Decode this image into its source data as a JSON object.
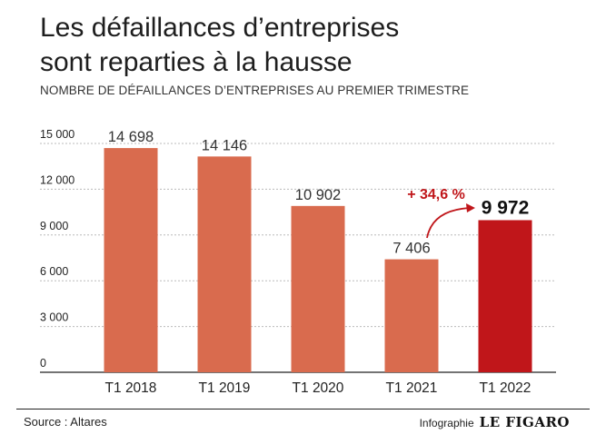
{
  "header": {
    "title_line1": "Les défaillances d’entreprises",
    "title_line2": "sont reparties à la hausse",
    "subtitle": "NOMBRE DE DÉFAILLANCES D’ENTREPRISES AU PREMIER TRIMESTRE"
  },
  "chart_data": {
    "type": "bar",
    "categories": [
      "T1 2018",
      "T1 2019",
      "T1 2020",
      "T1 2021",
      "T1 2022"
    ],
    "values": [
      14698,
      14146,
      10902,
      7406,
      9972
    ],
    "value_labels": [
      "14 698",
      "14 146",
      "10 902",
      "7 406",
      "9 972"
    ],
    "y_ticks": [
      0,
      3000,
      6000,
      9000,
      12000,
      15000
    ],
    "y_tick_labels": [
      "0",
      "3 000",
      "6 000",
      "9 000",
      "12 000",
      "15 000"
    ],
    "ylim": [
      0,
      15000
    ],
    "grid": true,
    "highlight_index": 4,
    "annotation": "+ 34,6 %",
    "colors": {
      "bar": "#d96b4e",
      "highlight": "#c0161a",
      "annotation": "#c0161a",
      "grid": "#bbbbbb"
    }
  },
  "footer": {
    "source": "Source : Altares",
    "credit": "Infographie",
    "logo": "LE FIGARO"
  }
}
